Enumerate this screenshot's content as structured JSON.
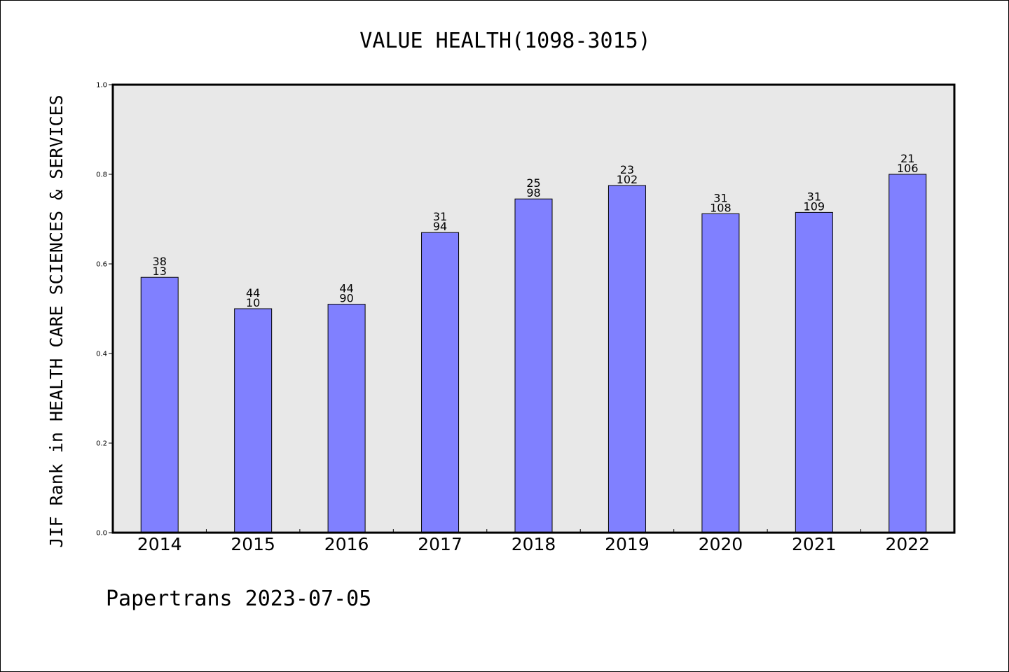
{
  "chart_data": {
    "type": "bar",
    "title": "VALUE HEALTH(1098-3015)",
    "xlabel": "",
    "ylabel": "JIF Rank in HEALTH CARE SCIENCES & SERVICES",
    "ylim": [
      0.0,
      1.0
    ],
    "yticks": [
      "0.0",
      "0.2",
      "0.4",
      "0.6",
      "0.8",
      "1.0"
    ],
    "categories": [
      "2014",
      "2015",
      "2016",
      "2017",
      "2018",
      "2019",
      "2020",
      "2021",
      "2022"
    ],
    "values": [
      0.57,
      0.5,
      0.51,
      0.67,
      0.745,
      0.775,
      0.712,
      0.715,
      0.8
    ],
    "bar_labels": [
      {
        "top": "38",
        "bottom": "13"
      },
      {
        "top": "44",
        "bottom": "10"
      },
      {
        "top": "44",
        "bottom": "90"
      },
      {
        "top": "31",
        "bottom": "94"
      },
      {
        "top": "25",
        "bottom": "98"
      },
      {
        "top": "23",
        "bottom": "102"
      },
      {
        "top": "31",
        "bottom": "108"
      },
      {
        "top": "31",
        "bottom": "109"
      },
      {
        "top": "21",
        "bottom": "106"
      }
    ],
    "grid": false,
    "colors": {
      "bar": "#8080ff",
      "plot_background": "#e8e8e8",
      "axes": "#000000"
    }
  },
  "footer": {
    "text": "Papertrans 2023-07-05"
  }
}
